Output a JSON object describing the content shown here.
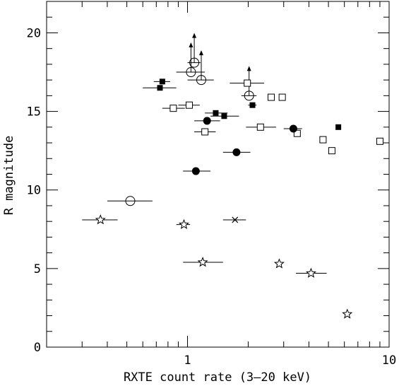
{
  "chart_data": {
    "type": "scatter",
    "title": "",
    "xlabel": "RXTE count rate (3–20 keV)",
    "ylabel": "R magnitude",
    "xscale": "log",
    "xlim": [
      0.2,
      10
    ],
    "ylim": [
      0,
      22
    ],
    "x_major_ticks": [
      "1",
      "10"
    ],
    "y_major_ticks": [
      "0",
      "5",
      "10",
      "15",
      "20"
    ],
    "grid": false,
    "legend": "none",
    "series": [
      {
        "marker": "filled-square",
        "points": [
          {
            "x": 0.75,
            "y": 16.9,
            "xerr": [
              0.68,
              0.82
            ]
          },
          {
            "x": 0.73,
            "y": 16.5,
            "xerr": [
              0.6,
              0.88
            ]
          },
          {
            "x": 1.38,
            "y": 14.9,
            "xerr": [
              1.22,
              1.58
            ]
          },
          {
            "x": 1.52,
            "y": 14.7,
            "xerr": [
              1.3,
              1.8
            ]
          },
          {
            "x": 2.1,
            "y": 15.4,
            "xerr": [
              2.0,
              2.2
            ]
          },
          {
            "x": 5.6,
            "y": 14.0
          }
        ]
      },
      {
        "marker": "open-square",
        "points": [
          {
            "x": 0.85,
            "y": 15.2,
            "xerr": [
              0.75,
              0.97
            ]
          },
          {
            "x": 1.02,
            "y": 15.4,
            "xerr": [
              0.9,
              1.15
            ]
          },
          {
            "x": 1.22,
            "y": 13.7,
            "xerr": [
              1.08,
              1.38
            ]
          },
          {
            "x": 2.3,
            "y": 14.0,
            "xerr": [
              1.95,
              2.75
            ]
          },
          {
            "x": 1.98,
            "y": 16.8,
            "xerr": [
              1.62,
              2.4
            ]
          },
          {
            "x": 2.6,
            "y": 15.9
          },
          {
            "x": 2.95,
            "y": 15.9
          },
          {
            "x": 3.5,
            "y": 13.6
          },
          {
            "x": 4.7,
            "y": 13.2
          },
          {
            "x": 5.2,
            "y": 12.5
          },
          {
            "x": 9.0,
            "y": 13.1
          }
        ]
      },
      {
        "marker": "filled-circle",
        "points": [
          {
            "x": 1.1,
            "y": 11.2,
            "xerr": [
              0.95,
              1.3
            ]
          },
          {
            "x": 1.25,
            "y": 14.4,
            "xerr": [
              1.08,
              1.45
            ]
          },
          {
            "x": 1.75,
            "y": 12.4,
            "xerr": [
              1.5,
              2.05
            ]
          },
          {
            "x": 3.35,
            "y": 13.9,
            "xerr": [
              3.0,
              3.7
            ]
          }
        ]
      },
      {
        "marker": "open-circle",
        "points": [
          {
            "x": 1.08,
            "y": 18.1,
            "xerr": [
              1.0,
              1.16
            ],
            "arrow_up": true
          },
          {
            "x": 1.04,
            "y": 17.5,
            "xerr": [
              0.88,
              1.22
            ],
            "arrow_up": true
          },
          {
            "x": 1.17,
            "y": 17.0,
            "xerr": [
              1.0,
              1.35
            ],
            "arrow_up": true
          },
          {
            "x": 2.02,
            "y": 16.0,
            "xerr": [
              1.85,
              2.2
            ],
            "arrow_up": true
          },
          {
            "x": 0.52,
            "y": 9.3,
            "xerr": [
              0.4,
              0.67
            ]
          }
        ]
      },
      {
        "marker": "open-star",
        "points": [
          {
            "x": 0.37,
            "y": 8.1,
            "xerr": [
              0.3,
              0.45
            ]
          },
          {
            "x": 0.96,
            "y": 7.8,
            "xerr": [
              0.88,
              1.03
            ]
          },
          {
            "x": 1.19,
            "y": 5.4,
            "xerr": [
              0.95,
              1.5
            ]
          },
          {
            "x": 2.85,
            "y": 5.3
          },
          {
            "x": 4.1,
            "y": 4.7,
            "xerr": [
              3.45,
              4.9
            ]
          },
          {
            "x": 6.2,
            "y": 2.1
          }
        ]
      },
      {
        "marker": "cross",
        "points": [
          {
            "x": 1.72,
            "y": 8.1,
            "xerr": [
              1.5,
              1.95
            ]
          }
        ]
      }
    ]
  }
}
